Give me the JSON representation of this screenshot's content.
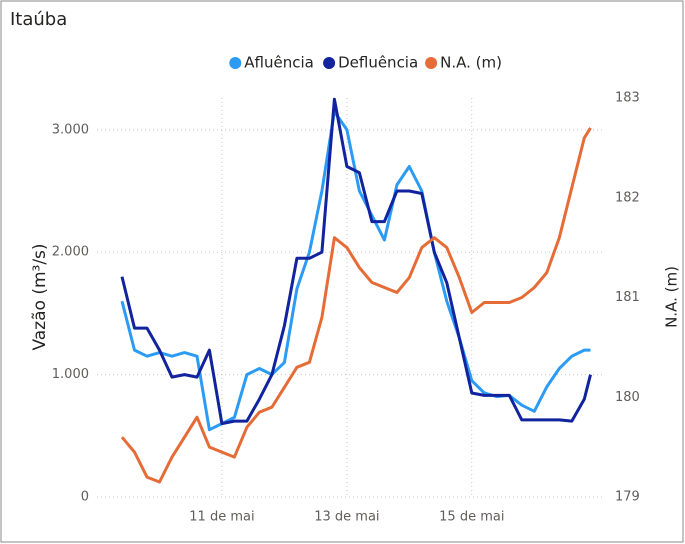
{
  "chart_data": {
    "type": "line",
    "title": "Itaúba",
    "y_label": "Vazão (m³/s)",
    "y2_label": "N.A. (m)",
    "x": [
      9.4,
      9.6,
      9.8,
      10.0,
      10.2,
      10.4,
      10.6,
      10.8,
      11.0,
      11.2,
      11.4,
      11.6,
      11.8,
      12.0,
      12.2,
      12.4,
      12.6,
      12.8,
      13.0,
      13.2,
      13.4,
      13.6,
      13.8,
      14.0,
      14.2,
      14.4,
      14.6,
      14.8,
      15.0,
      15.2,
      15.4,
      15.6,
      15.8,
      16.0,
      16.2,
      16.4,
      16.6,
      16.8,
      16.9
    ],
    "series": [
      {
        "name": "Afluência",
        "color": "#2b9bf4",
        "values": [
          1600,
          1200,
          1150,
          1180,
          1150,
          1180,
          1150,
          550,
          600,
          650,
          1000,
          1050,
          1000,
          1100,
          1700,
          2000,
          2500,
          3150,
          3000,
          2500,
          2300,
          2100,
          2550,
          2700,
          2500,
          2000,
          1600,
          1300,
          950,
          850,
          820,
          830,
          750,
          700,
          900,
          1050,
          1150,
          1200,
          1200
        ]
      },
      {
        "name": "Defluência",
        "color": "#12239e",
        "values": [
          1800,
          1380,
          1380,
          1200,
          980,
          1000,
          980,
          1200,
          600,
          620,
          620,
          800,
          1000,
          1400,
          1950,
          1950,
          2000,
          3250,
          2700,
          2650,
          2250,
          2250,
          2500,
          2500,
          2480,
          2000,
          1750,
          1300,
          850,
          830,
          830,
          830,
          630,
          630,
          630,
          630,
          620,
          800,
          1000
        ]
      },
      {
        "name": "N.A. (m)",
        "color": "#e66c37",
        "axis": "y2",
        "values": [
          179.6,
          179.45,
          179.2,
          179.15,
          179.4,
          179.6,
          179.8,
          179.5,
          179.45,
          179.4,
          179.7,
          179.85,
          179.9,
          180.1,
          180.3,
          180.35,
          180.8,
          181.6,
          181.5,
          181.3,
          181.15,
          181.1,
          181.05,
          181.2,
          181.5,
          181.6,
          181.5,
          181.2,
          180.85,
          180.95,
          180.95,
          180.95,
          181.0,
          181.1,
          181.25,
          181.6,
          182.1,
          182.6,
          182.7
        ]
      }
    ],
    "xlim": [
      9,
      17.1
    ],
    "xticks": [
      {
        "value": 11,
        "label": "11 de mai"
      },
      {
        "value": 13,
        "label": "13 de mai"
      },
      {
        "value": 15,
        "label": "15 de mai"
      }
    ],
    "ylim": [
      0,
      3260
    ],
    "yticks": [
      0,
      {
        "value": 1000,
        "label": "1.000"
      },
      {
        "value": 2000,
        "label": "2.000"
      },
      {
        "value": 3000,
        "label": "3.000"
      }
    ],
    "y2lim": [
      179,
      183
    ],
    "y2ticks": [
      179,
      180,
      181,
      182,
      183
    ],
    "grid": true,
    "legend": "top"
  }
}
